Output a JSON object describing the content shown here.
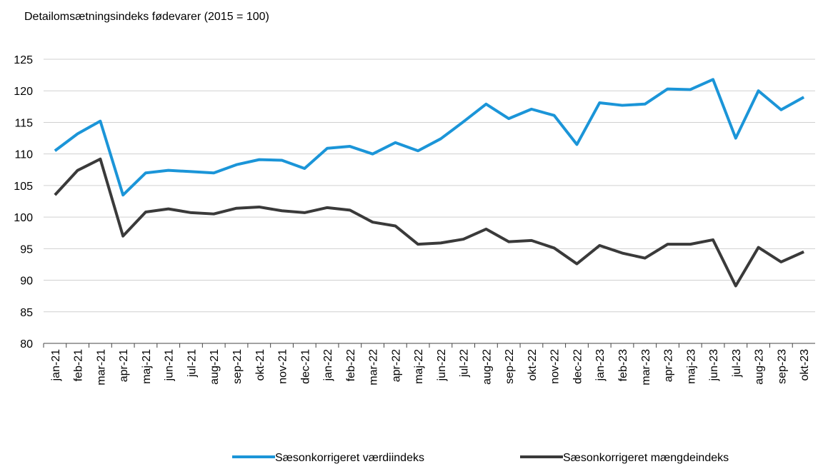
{
  "chart_data": {
    "type": "line",
    "title": "Detailomsætningsindeks fødevarer (2015 = 100)",
    "categories": [
      "jan-21",
      "feb-21",
      "mar-21",
      "apr-21",
      "maj-21",
      "jun-21",
      "jul-21",
      "aug-21",
      "sep-21",
      "okt-21",
      "nov-21",
      "dec-21",
      "jan-22",
      "feb-22",
      "mar-22",
      "apr-22",
      "maj-22",
      "jun-22",
      "jul-22",
      "aug-22",
      "sep-22",
      "okt-22",
      "nov-22",
      "dec-22",
      "jan-23",
      "feb-23",
      "mar-23",
      "apr-23",
      "maj-23",
      "jun-23",
      "jul-23",
      "aug-23",
      "sep-23",
      "okt-23"
    ],
    "series": [
      {
        "name": "Sæsonkorrigeret værdiindeks",
        "color": "#1b95d8",
        "values": [
          110.5,
          113.2,
          115.2,
          103.5,
          107,
          107.4,
          107.2,
          107,
          108.3,
          109.1,
          109,
          107.7,
          110.9,
          111.2,
          110,
          111.8,
          110.5,
          112.4,
          115.1,
          117.9,
          115.6,
          117.1,
          116.1,
          111.5,
          118.1,
          117.7,
          117.9,
          120.3,
          120.2,
          121.8,
          112.5,
          120,
          117,
          119
        ]
      },
      {
        "name": "Sæsonkorrigeret mængdeindeks",
        "color": "#3a3a3a",
        "values": [
          103.5,
          107.4,
          109.2,
          97,
          100.8,
          101.3,
          100.7,
          100.5,
          101.4,
          101.6,
          101,
          100.7,
          101.5,
          101.1,
          99.2,
          98.6,
          95.7,
          95.9,
          96.5,
          98.1,
          96.1,
          96.3,
          95.1,
          92.6,
          95.5,
          94.3,
          93.5,
          95.7,
          95.7,
          96.4,
          89.1,
          95.2,
          92.9,
          94.5
        ]
      }
    ],
    "ylim": [
      80,
      125
    ],
    "yticks": [
      80,
      85,
      90,
      95,
      100,
      105,
      110,
      115,
      120,
      125
    ],
    "grid": true,
    "legend": "bottom"
  }
}
